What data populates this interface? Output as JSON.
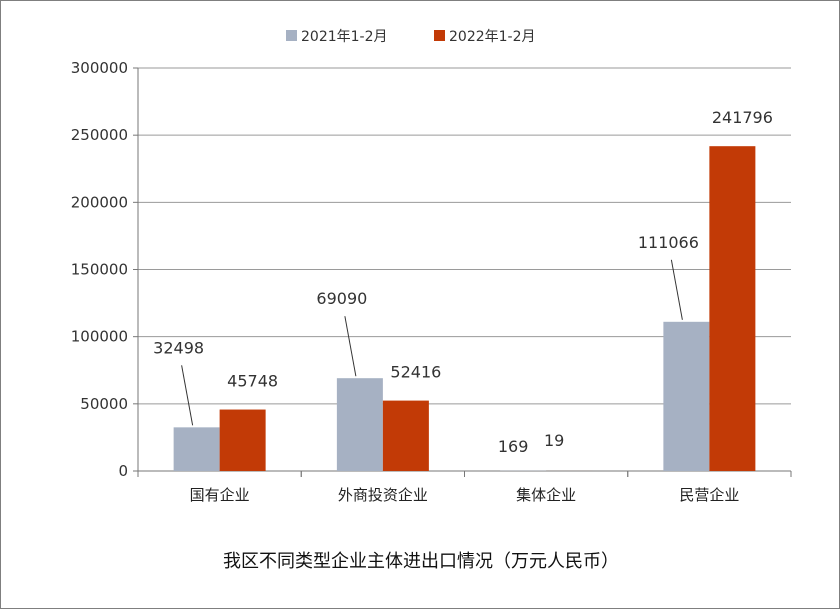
{
  "chart_data": {
    "type": "bar",
    "title": "我区不同类型企业主体进出口情况（万元人民币）",
    "xlabel": "",
    "ylabel": "",
    "ylim": [
      0,
      300000
    ],
    "yticks": [
      0,
      50000,
      100000,
      150000,
      200000,
      250000,
      300000
    ],
    "grid": true,
    "legend_position": "top-center",
    "categories": [
      "国有企业",
      "外商投资企业",
      "集体企业",
      "民营企业"
    ],
    "series": [
      {
        "name": "2021年1-2月",
        "color": "#a6b1c3",
        "values": [
          32498,
          69090,
          169,
          111066
        ]
      },
      {
        "name": "2022年1-2月",
        "color": "#c23a06",
        "values": [
          45748,
          52416,
          19,
          241796
        ]
      }
    ]
  }
}
